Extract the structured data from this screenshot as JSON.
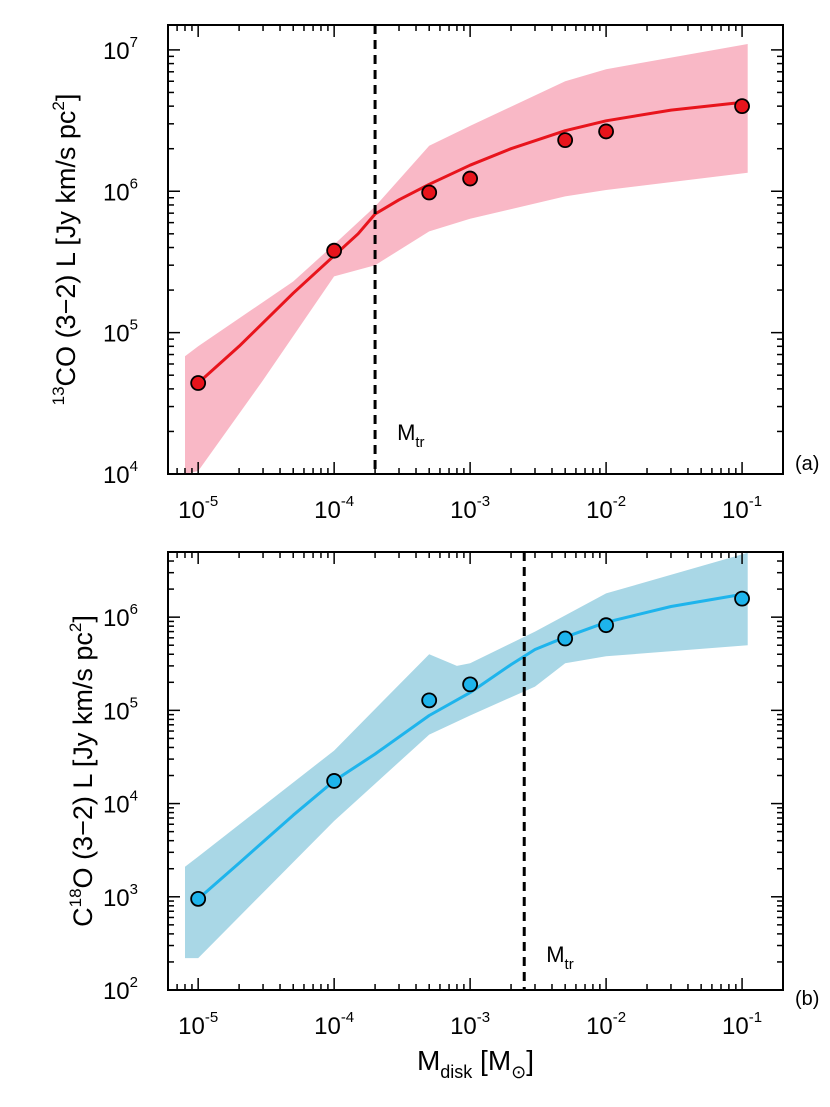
{
  "chart_data": [
    {
      "type": "line",
      "panel_label": "(a)",
      "ylabel_sup": "13",
      "ylabel_main": "CO (3−2) L [Jy km/s pc",
      "ylabel_sup2": "2",
      "ylabel_end": "]",
      "xscale": "log",
      "yscale": "log",
      "xlim": [
        6e-06,
        0.2
      ],
      "ylim": [
        10000,
        15000000
      ],
      "xticks": [
        1e-05,
        0.0001,
        0.001,
        0.01,
        0.1
      ],
      "xtick_mantissa": "10",
      "xtick_exps": [
        "-5",
        "-4",
        "-3",
        "-2",
        "-1"
      ],
      "yticks": [
        10000,
        100000,
        1000000,
        10000000
      ],
      "ytick_mantissa": "10",
      "ytick_exps": [
        "4",
        "5",
        "6",
        "7"
      ],
      "vline_x": 0.0002,
      "vline_label_main": "M",
      "vline_label_sub": "tr",
      "line_color": "#e8141c",
      "band_color": "#f9b8c6",
      "points": [
        {
          "x": 1e-05,
          "y": 44000
        },
        {
          "x": 0.0001,
          "y": 380000
        },
        {
          "x": 0.0005,
          "y": 980000
        },
        {
          "x": 0.001,
          "y": 1230000
        },
        {
          "x": 0.005,
          "y": 2300000
        },
        {
          "x": 0.01,
          "y": 2650000
        },
        {
          "x": 0.1,
          "y": 4000000
        }
      ],
      "curve": [
        {
          "x": 1e-05,
          "y": 44000
        },
        {
          "x": 2e-05,
          "y": 80000
        },
        {
          "x": 5e-05,
          "y": 190000
        },
        {
          "x": 0.0001,
          "y": 350000
        },
        {
          "x": 0.00015,
          "y": 500000
        },
        {
          "x": 0.0002,
          "y": 690000
        },
        {
          "x": 0.0003,
          "y": 870000
        },
        {
          "x": 0.0005,
          "y": 1120000
        },
        {
          "x": 0.001,
          "y": 1530000
        },
        {
          "x": 0.002,
          "y": 2000000
        },
        {
          "x": 0.005,
          "y": 2680000
        },
        {
          "x": 0.01,
          "y": 3150000
        },
        {
          "x": 0.03,
          "y": 3750000
        },
        {
          "x": 0.11,
          "y": 4300000
        }
      ],
      "band_upper": [
        {
          "x": 8e-06,
          "y": 68000
        },
        {
          "x": 1e-05,
          "y": 80000
        },
        {
          "x": 5e-05,
          "y": 230000
        },
        {
          "x": 0.0001,
          "y": 420000
        },
        {
          "x": 0.0002,
          "y": 780000
        },
        {
          "x": 0.0005,
          "y": 2100000
        },
        {
          "x": 0.001,
          "y": 2900000
        },
        {
          "x": 0.005,
          "y": 6000000
        },
        {
          "x": 0.01,
          "y": 7300000
        },
        {
          "x": 0.11,
          "y": 11000000
        }
      ],
      "band_lower": [
        {
          "x": 8e-06,
          "y": 10000
        },
        {
          "x": 1e-05,
          "y": 10500
        },
        {
          "x": 3e-05,
          "y": 46000
        },
        {
          "x": 0.0001,
          "y": 250000
        },
        {
          "x": 0.0002,
          "y": 300000
        },
        {
          "x": 0.0005,
          "y": 520000
        },
        {
          "x": 0.001,
          "y": 640000
        },
        {
          "x": 0.005,
          "y": 920000
        },
        {
          "x": 0.01,
          "y": 1020000
        },
        {
          "x": 0.11,
          "y": 1350000
        }
      ]
    },
    {
      "type": "line",
      "panel_label": "(b)",
      "ylabel_pre": "C",
      "ylabel_sup": "18",
      "ylabel_main": "O (3−2) L [Jy km/s pc",
      "ylabel_sup2": "2",
      "ylabel_end": "]",
      "xlabel_main": "M",
      "xlabel_sub": "disk",
      "xlabel_unit": "[M",
      "xlabel_unit_sub": "⊙",
      "xlabel_end": "]",
      "xscale": "log",
      "yscale": "log",
      "xlim": [
        6e-06,
        0.2
      ],
      "ylim": [
        100,
        5000000
      ],
      "xticks": [
        1e-05,
        0.0001,
        0.001,
        0.01,
        0.1
      ],
      "xtick_mantissa": "10",
      "xtick_exps": [
        "-5",
        "-4",
        "-3",
        "-2",
        "-1"
      ],
      "yticks": [
        100,
        1000,
        10000,
        100000,
        1000000
      ],
      "ytick_mantissa": "10",
      "ytick_exps": [
        "2",
        "3",
        "4",
        "5",
        "6"
      ],
      "vline_x": 0.0025,
      "vline_label_main": "M",
      "vline_label_sub": "tr",
      "line_color": "#1eb4ec",
      "band_color": "#a9d7e6",
      "points": [
        {
          "x": 1e-05,
          "y": 950
        },
        {
          "x": 0.0001,
          "y": 17500
        },
        {
          "x": 0.0005,
          "y": 128000
        },
        {
          "x": 0.001,
          "y": 190000
        },
        {
          "x": 0.005,
          "y": 590000
        },
        {
          "x": 0.01,
          "y": 820000
        },
        {
          "x": 0.1,
          "y": 1580000
        }
      ],
      "curve": [
        {
          "x": 1e-05,
          "y": 950
        },
        {
          "x": 2e-05,
          "y": 2300
        },
        {
          "x": 5e-05,
          "y": 7500
        },
        {
          "x": 0.0001,
          "y": 17500
        },
        {
          "x": 0.0002,
          "y": 34000
        },
        {
          "x": 0.0005,
          "y": 88000
        },
        {
          "x": 0.001,
          "y": 155000
        },
        {
          "x": 0.002,
          "y": 310000
        },
        {
          "x": 0.003,
          "y": 450000
        },
        {
          "x": 0.005,
          "y": 610000
        },
        {
          "x": 0.01,
          "y": 880000
        },
        {
          "x": 0.03,
          "y": 1300000
        },
        {
          "x": 0.11,
          "y": 1800000
        }
      ],
      "band_upper": [
        {
          "x": 8e-06,
          "y": 2100
        },
        {
          "x": 1e-05,
          "y": 2700
        },
        {
          "x": 0.0001,
          "y": 37000
        },
        {
          "x": 0.0005,
          "y": 400000
        },
        {
          "x": 0.0008,
          "y": 300000
        },
        {
          "x": 0.001,
          "y": 320000
        },
        {
          "x": 0.003,
          "y": 700000
        },
        {
          "x": 0.01,
          "y": 1800000
        },
        {
          "x": 0.11,
          "y": 4900000
        }
      ],
      "band_lower": [
        {
          "x": 8e-06,
          "y": 220
        },
        {
          "x": 1e-05,
          "y": 220
        },
        {
          "x": 0.0001,
          "y": 6500
        },
        {
          "x": 0.0005,
          "y": 55000
        },
        {
          "x": 0.001,
          "y": 88000
        },
        {
          "x": 0.003,
          "y": 180000
        },
        {
          "x": 0.005,
          "y": 320000
        },
        {
          "x": 0.01,
          "y": 380000
        },
        {
          "x": 0.11,
          "y": 500000
        }
      ]
    }
  ]
}
